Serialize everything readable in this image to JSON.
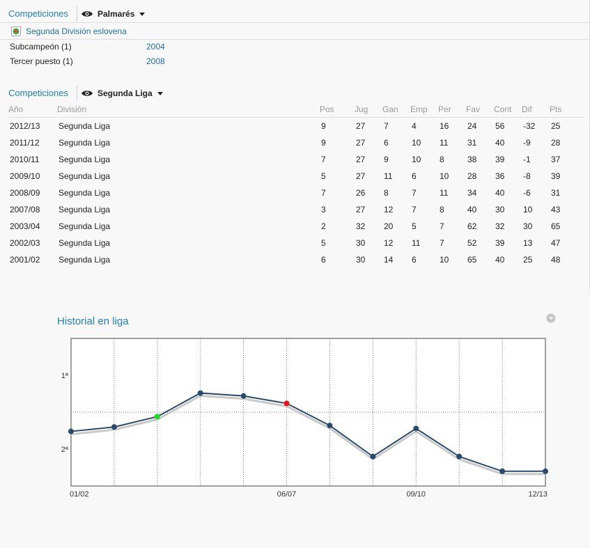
{
  "palmares_section": {
    "competitions_label": "Competiciones",
    "dropdown_label": "Palmarés",
    "league_name": "Segunda División eslovena",
    "entries": [
      {
        "label": "Subcampeón  (1)",
        "year": "2004"
      },
      {
        "label": "Tercer puesto  (1)",
        "year": "2008"
      }
    ]
  },
  "league_section": {
    "competitions_label": "Competiciones",
    "dropdown_label": "Segunda Liga",
    "columns": [
      "Año",
      "División",
      "Pos",
      "Jug",
      "Gan",
      "Emp",
      "Per",
      "Fav",
      "Cont",
      "Dif",
      "Pts"
    ],
    "rows": [
      [
        "2012/13",
        "Segunda Liga",
        "9",
        "27",
        "7",
        "4",
        "16",
        "24",
        "56",
        "-32",
        "25"
      ],
      [
        "2011/12",
        "Segunda Liga",
        "9",
        "27",
        "6",
        "10",
        "11",
        "31",
        "40",
        "-9",
        "28"
      ],
      [
        "2010/11",
        "Segunda Liga",
        "7",
        "27",
        "9",
        "10",
        "8",
        "38",
        "39",
        "-1",
        "37"
      ],
      [
        "2009/10",
        "Segunda Liga",
        "5",
        "27",
        "11",
        "6",
        "10",
        "28",
        "36",
        "-8",
        "39"
      ],
      [
        "2008/09",
        "Segunda Liga",
        "7",
        "26",
        "8",
        "7",
        "11",
        "34",
        "40",
        "-6",
        "31"
      ],
      [
        "2007/08",
        "Segunda Liga",
        "3",
        "27",
        "12",
        "7",
        "8",
        "40",
        "30",
        "10",
        "43"
      ],
      [
        "2003/04",
        "Segunda Liga",
        "2",
        "32",
        "20",
        "5",
        "7",
        "62",
        "32",
        "30",
        "65"
      ],
      [
        "2002/03",
        "Segunda Liga",
        "5",
        "30",
        "12",
        "11",
        "7",
        "52",
        "39",
        "13",
        "47"
      ],
      [
        "2001/02",
        "Segunda Liga",
        "6",
        "30",
        "14",
        "6",
        "10",
        "65",
        "40",
        "25",
        "48"
      ]
    ]
  },
  "chart_title": "Historial en liga",
  "chart_data": {
    "type": "line",
    "title": "Historial en liga",
    "y_tick_labels": [
      "1ª",
      "2ª"
    ],
    "x_tick_labels": [
      "01/02",
      "06/07",
      "09/10",
      "12/13"
    ],
    "x": [
      "01/02",
      "02/03",
      "03/04",
      "04/05",
      "05/06",
      "06/07",
      "07/08",
      "08/09",
      "09/10",
      "10/11",
      "11/12",
      "12/13"
    ],
    "series": [
      {
        "values": [
          0.63,
          0.6,
          0.53,
          0.37,
          0.39,
          0.44,
          0.59,
          0.8,
          0.61,
          0.8,
          0.9,
          0.9
        ],
        "highlight": {
          "03/04": "#22dd22",
          "06/07": "#ee1111"
        }
      }
    ],
    "ylim": [
      0,
      1
    ],
    "grid": true,
    "line_color": "#2a4a6b",
    "shadow_color": "#c8c8c8"
  },
  "colors": {
    "link": "#1f7fb5",
    "header_text": "#999999"
  },
  "icons": {
    "dropdown_view": "eye-icon",
    "dropdown_arrow": "caret-down-icon",
    "league_logo": "league-logo-icon",
    "chart_menu": "chevron-down-circle-icon"
  }
}
